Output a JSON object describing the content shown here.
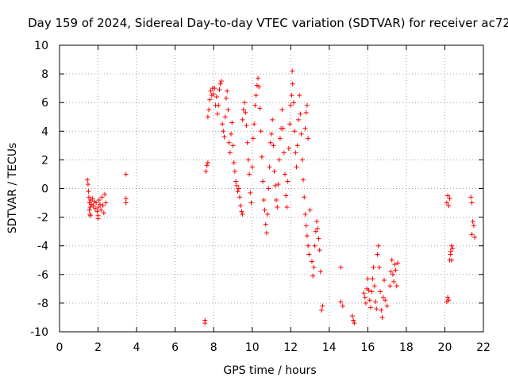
{
  "chart_data": {
    "type": "scatter",
    "title": "Day 159 of 2024, Sidereal Day-to-day VTEC variation (SDTVAR) for receiver ac72",
    "xlabel": "GPS time / hours",
    "ylabel": "SDTVAR / TECUs",
    "xlim": [
      0,
      22
    ],
    "ylim": [
      -10,
      10
    ],
    "xticks": [
      0,
      2,
      4,
      6,
      8,
      10,
      12,
      14,
      16,
      18,
      20,
      22
    ],
    "yticks": [
      -10,
      -8,
      -6,
      -4,
      -2,
      0,
      2,
      4,
      6,
      8,
      10
    ],
    "xtick_labels": [
      "0",
      "2",
      "4",
      "6",
      "8",
      "10",
      "12",
      "14",
      "16",
      "18",
      "20",
      "22"
    ],
    "ytick_labels": [
      "-10",
      "-8",
      "-6",
      "-4",
      "-2",
      "0",
      "2",
      "4",
      "6",
      "8",
      "10"
    ],
    "grid": true,
    "marker": "+",
    "color": "#ff0000",
    "series": [
      {
        "name": "SDTVAR",
        "points": [
          [
            1.45,
            0.6
          ],
          [
            1.48,
            0.3
          ],
          [
            1.5,
            -0.2
          ],
          [
            1.52,
            -0.6
          ],
          [
            1.55,
            -1.0
          ],
          [
            1.55,
            -1.5
          ],
          [
            1.58,
            -1.8
          ],
          [
            1.6,
            -1.3
          ],
          [
            1.62,
            -0.8
          ],
          [
            1.65,
            -1.1
          ],
          [
            1.7,
            -0.7
          ],
          [
            1.75,
            -1.2
          ],
          [
            1.8,
            -0.9
          ],
          [
            1.85,
            -1.4
          ],
          [
            1.9,
            -1.0
          ],
          [
            1.95,
            -1.6
          ],
          [
            2.0,
            -1.9
          ],
          [
            2.02,
            -1.3
          ],
          [
            2.05,
            -0.8
          ],
          [
            2.1,
            -1.1
          ],
          [
            2.15,
            -1.5
          ],
          [
            2.2,
            -0.6
          ],
          [
            2.25,
            -1.2
          ],
          [
            2.3,
            -1.7
          ],
          [
            2.35,
            -0.4
          ],
          [
            2.4,
            -1.0
          ],
          [
            1.6,
            -1.9
          ],
          [
            2.0,
            -2.1
          ],
          [
            3.45,
            1.0
          ],
          [
            3.45,
            -0.7
          ],
          [
            3.45,
            -1.0
          ],
          [
            7.55,
            -9.2
          ],
          [
            7.55,
            -9.4
          ],
          [
            7.6,
            1.2
          ],
          [
            7.65,
            1.6
          ],
          [
            7.7,
            1.8
          ],
          [
            7.7,
            5.0
          ],
          [
            7.75,
            5.5
          ],
          [
            7.8,
            6.2
          ],
          [
            7.85,
            6.8
          ],
          [
            7.9,
            6.5
          ],
          [
            7.95,
            7.0
          ],
          [
            8.0,
            6.6
          ],
          [
            8.05,
            7.0
          ],
          [
            8.1,
            5.8
          ],
          [
            8.15,
            6.4
          ],
          [
            8.2,
            5.2
          ],
          [
            8.25,
            5.8
          ],
          [
            8.3,
            6.9
          ],
          [
            8.35,
            7.3
          ],
          [
            8.4,
            7.5
          ],
          [
            8.45,
            4.5
          ],
          [
            8.5,
            4.0
          ],
          [
            8.55,
            3.6
          ],
          [
            8.6,
            5.0
          ],
          [
            8.65,
            6.3
          ],
          [
            8.7,
            6.8
          ],
          [
            8.75,
            5.5
          ],
          [
            8.8,
            3.2
          ],
          [
            8.85,
            2.5
          ],
          [
            8.9,
            3.8
          ],
          [
            8.95,
            4.6
          ],
          [
            9.0,
            3.0
          ],
          [
            9.05,
            1.8
          ],
          [
            9.1,
            1.2
          ],
          [
            9.15,
            0.5
          ],
          [
            9.2,
            0.2
          ],
          [
            9.25,
            -0.2
          ],
          [
            9.3,
            0.0
          ],
          [
            9.35,
            -0.6
          ],
          [
            9.4,
            -1.2
          ],
          [
            9.45,
            -1.6
          ],
          [
            9.5,
            -1.8
          ],
          [
            9.5,
            4.8
          ],
          [
            9.55,
            5.5
          ],
          [
            9.6,
            6.0
          ],
          [
            9.65,
            5.3
          ],
          [
            9.7,
            4.4
          ],
          [
            9.75,
            3.2
          ],
          [
            9.8,
            2.0
          ],
          [
            9.85,
            1.0
          ],
          [
            9.9,
            -0.3
          ],
          [
            9.95,
            -1.0
          ],
          [
            10.0,
            1.5
          ],
          [
            10.05,
            3.5
          ],
          [
            10.1,
            4.5
          ],
          [
            10.15,
            5.8
          ],
          [
            10.2,
            6.5
          ],
          [
            10.25,
            7.2
          ],
          [
            10.3,
            7.7
          ],
          [
            10.35,
            7.1
          ],
          [
            10.4,
            5.6
          ],
          [
            10.45,
            4.0
          ],
          [
            10.5,
            2.2
          ],
          [
            10.55,
            0.5
          ],
          [
            10.6,
            -0.8
          ],
          [
            10.65,
            -1.5
          ],
          [
            10.7,
            -2.5
          ],
          [
            10.75,
            -3.1
          ],
          [
            10.8,
            -1.8
          ],
          [
            10.85,
            0.0
          ],
          [
            10.9,
            1.5
          ],
          [
            10.95,
            3.2
          ],
          [
            11.0,
            3.8
          ],
          [
            11.05,
            4.8
          ],
          [
            11.1,
            3.0
          ],
          [
            11.15,
            1.2
          ],
          [
            11.2,
            0.2
          ],
          [
            11.25,
            -0.8
          ],
          [
            11.3,
            -1.3
          ],
          [
            11.35,
            0.3
          ],
          [
            11.4,
            2.0
          ],
          [
            11.45,
            3.5
          ],
          [
            11.5,
            4.2
          ],
          [
            11.55,
            5.5
          ],
          [
            11.6,
            4.2
          ],
          [
            11.65,
            2.5
          ],
          [
            11.7,
            1.0
          ],
          [
            11.75,
            -0.5
          ],
          [
            11.8,
            -1.3
          ],
          [
            11.85,
            0.5
          ],
          [
            11.9,
            2.8
          ],
          [
            11.95,
            4.5
          ],
          [
            12.0,
            5.8
          ],
          [
            12.05,
            6.5
          ],
          [
            12.08,
            8.2
          ],
          [
            12.1,
            7.3
          ],
          [
            12.15,
            6.0
          ],
          [
            12.2,
            4.0
          ],
          [
            12.25,
            2.5
          ],
          [
            12.3,
            1.5
          ],
          [
            12.35,
            3.0
          ],
          [
            12.4,
            4.8
          ],
          [
            12.45,
            6.5
          ],
          [
            12.5,
            5.2
          ],
          [
            12.55,
            3.8
          ],
          [
            12.6,
            2.0
          ],
          [
            12.65,
            0.6
          ],
          [
            12.7,
            -0.6
          ],
          [
            12.75,
            -1.8
          ],
          [
            12.8,
            -2.6
          ],
          [
            12.85,
            -3.3
          ],
          [
            12.9,
            -4.0
          ],
          [
            12.95,
            -4.6
          ],
          [
            12.75,
            4.2
          ],
          [
            12.8,
            5.3
          ],
          [
            12.85,
            5.8
          ],
          [
            12.9,
            3.5
          ],
          [
            13.0,
            -1.5
          ],
          [
            13.1,
            -5.1
          ],
          [
            13.15,
            -6.1
          ],
          [
            13.2,
            -5.5
          ],
          [
            13.25,
            -4.0
          ],
          [
            13.3,
            -3.0
          ],
          [
            13.35,
            -2.3
          ],
          [
            13.4,
            -2.8
          ],
          [
            13.45,
            -3.5
          ],
          [
            13.5,
            -4.3
          ],
          [
            13.55,
            -5.8
          ],
          [
            13.6,
            -8.5
          ],
          [
            13.65,
            -8.2
          ],
          [
            14.6,
            -5.5
          ],
          [
            14.6,
            -7.9
          ],
          [
            14.7,
            -8.2
          ],
          [
            15.2,
            -8.9
          ],
          [
            15.25,
            -9.2
          ],
          [
            15.3,
            -9.4
          ],
          [
            15.8,
            -7.3
          ],
          [
            15.85,
            -7.6
          ],
          [
            15.9,
            -8.0
          ],
          [
            15.95,
            -7.0
          ],
          [
            16.0,
            -6.3
          ],
          [
            16.05,
            -7.1
          ],
          [
            16.1,
            -7.8
          ],
          [
            16.15,
            -8.3
          ],
          [
            16.2,
            -7.2
          ],
          [
            16.25,
            -6.3
          ],
          [
            16.3,
            -5.5
          ],
          [
            16.35,
            -6.8
          ],
          [
            16.4,
            -7.9
          ],
          [
            16.45,
            -8.4
          ],
          [
            16.5,
            -4.6
          ],
          [
            16.55,
            -4.0
          ],
          [
            16.6,
            -5.5
          ],
          [
            16.65,
            -7.2
          ],
          [
            16.7,
            -8.5
          ],
          [
            16.75,
            -9.0
          ],
          [
            16.8,
            -7.6
          ],
          [
            16.85,
            -6.4
          ],
          [
            16.9,
            -7.8
          ],
          [
            17.0,
            -8.2
          ],
          [
            17.15,
            -6.8
          ],
          [
            17.2,
            -5.8
          ],
          [
            17.25,
            -5.0
          ],
          [
            17.3,
            -6.0
          ],
          [
            17.35,
            -6.5
          ],
          [
            17.4,
            -5.3
          ],
          [
            17.45,
            -5.7
          ],
          [
            17.5,
            -6.8
          ],
          [
            17.55,
            -5.2
          ],
          [
            20.1,
            -7.9
          ],
          [
            20.15,
            -7.6
          ],
          [
            20.2,
            -7.8
          ],
          [
            20.25,
            -5.0
          ],
          [
            20.3,
            -4.4
          ],
          [
            20.35,
            -4.0
          ],
          [
            20.1,
            -1.0
          ],
          [
            20.15,
            -0.5
          ],
          [
            20.2,
            -1.2
          ],
          [
            20.25,
            -0.7
          ],
          [
            20.3,
            -4.6
          ],
          [
            20.35,
            -5.0
          ],
          [
            20.4,
            -4.2
          ],
          [
            21.35,
            -0.6
          ],
          [
            21.4,
            -1.0
          ],
          [
            21.45,
            -2.3
          ],
          [
            21.5,
            -2.6
          ],
          [
            21.55,
            -3.4
          ],
          [
            21.4,
            -3.2
          ]
        ]
      }
    ]
  }
}
